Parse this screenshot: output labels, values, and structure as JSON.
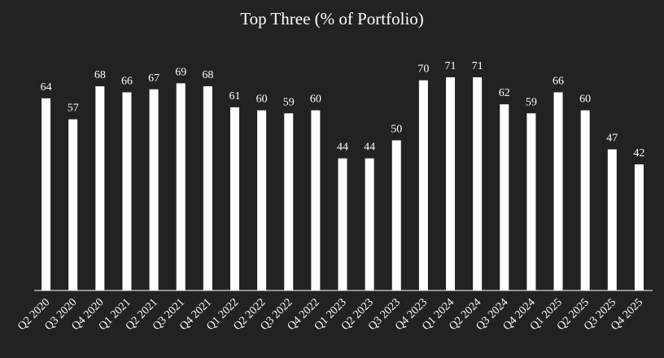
{
  "chart_data": {
    "type": "bar",
    "title": "Top Three (% of Portfolio)",
    "categories": [
      "Q2 2020",
      "Q3 2020",
      "Q4 2020",
      "Q1 2021",
      "Q2 2021",
      "Q3 2021",
      "Q4 2021",
      "Q1 2022",
      "Q2 2022",
      "Q3 2022",
      "Q4 2022",
      "Q1 2023",
      "Q2 2023",
      "Q3 2023",
      "Q4 2023",
      "Q1 2024",
      "Q2 2024",
      "Q3 2024",
      "Q4 2024",
      "Q1 2025",
      "Q2 2025",
      "Q3 2025",
      "Q4 2025"
    ],
    "values": [
      64,
      57,
      68,
      66,
      67,
      69,
      68,
      61,
      60,
      59,
      60,
      44,
      44,
      50,
      70,
      71,
      71,
      62,
      59,
      66,
      60,
      47,
      42
    ],
    "color": "#ffffff"
  }
}
